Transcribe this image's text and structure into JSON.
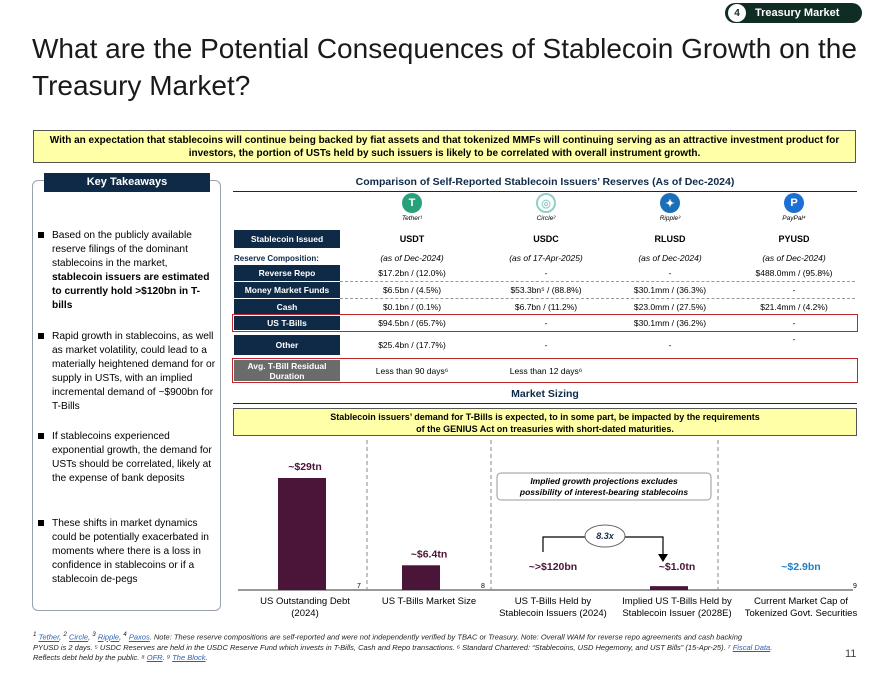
{
  "badge": {
    "number": "4",
    "label": "Treasury Market"
  },
  "title": "What are the Potential Consequences of Stablecoin Growth on the Treasury Market?",
  "banner": {
    "line1": "With an expectation that stablecoins will continue being backed by fiat assets and that tokenized MMFs will continuing serving as an attractive investment product for",
    "line2": "investors, the portion of USTs held by such issuers is likely to be correlated with overall instrument growth."
  },
  "takeaways": {
    "header": "Key Takeaways",
    "items": [
      {
        "pre": "Based on the publicly available reserve filings of the dominant stablecoins in the market, ",
        "bold": "stablecoin issuers are estimated to currently hold >$120bn in T-bills",
        "post": ""
      },
      {
        "pre": "Rapid growth in stablecoins, as well as market volatility, could lead to a materially heightened demand for or supply in USTs, with an implied incremental demand of ~$900bn for T-Bills",
        "bold": "",
        "post": ""
      },
      {
        "pre": "If stablecoins experienced exponential growth, the demand for USTs should be correlated, likely at the expense of bank deposits",
        "bold": "",
        "post": ""
      },
      {
        "pre": "These shifts in market dynamics could be potentially exacerbated in moments where there is a loss in confidence in stablecoins or if a stablecoin de-pegs",
        "bold": "",
        "post": ""
      }
    ]
  },
  "comparison": {
    "title": "Comparison of Self-Reported Stablecoin Issuers’ Reserves (As of Dec-2024)",
    "issuers": [
      {
        "caption": "Tether¹",
        "icon": "tether-icon",
        "color": "#26a17b",
        "glyph": "T",
        "ticker": "USDT",
        "asof": "(as of Dec-2024)"
      },
      {
        "caption": "Circle²",
        "icon": "circle-icon",
        "color": "#8fd0c8",
        "glyph": "◎",
        "ticker": "USDC",
        "asof": "(as of 17-Apr-2025)"
      },
      {
        "caption": "Ripple³",
        "icon": "ripple-icon",
        "color": "#1b6fb8",
        "glyph": "✦",
        "ticker": "RLUSD",
        "asof": "(as of Dec-2024)"
      },
      {
        "caption": "PayPal⁴",
        "icon": "paypal-icon",
        "color": "#1d6fd6",
        "glyph": "P",
        "ticker": "PYUSD",
        "asof": "(as of Dec-2024)"
      }
    ],
    "header_label": "Stablecoin Issued",
    "reserve_label": "Reserve Composition:",
    "rows": [
      {
        "label": "Reverse Repo",
        "values": [
          "$17.2bn / (12.0%)",
          "-",
          "-",
          "$488.0mm / (95.8%)"
        ]
      },
      {
        "label": "Money Market Funds",
        "values": [
          "$6.5bn / (4.5%)",
          "$53.3bn⁵ / (88.8%)",
          "$30.1mm / (36.3%)",
          "-"
        ]
      },
      {
        "label": "Cash",
        "values": [
          "$0.1bn / (0.1%)",
          "$6.7bn / (11.2%)",
          "$23.0mm / (27.5%)",
          "$21.4mm / (4.2%)"
        ]
      },
      {
        "label": "US T-Bills",
        "values": [
          "$94.5bn / (65.7%)",
          "-",
          "$30.1mm / (36.2%)",
          "-"
        ]
      },
      {
        "label": "Other",
        "values": [
          "$25.4bn / (17.7%)",
          "-",
          "-",
          "-"
        ]
      },
      {
        "label": "Avg. T-Bill Residual Duration",
        "values": [
          "Less than 90 days⁶",
          "Less than 12 days⁶",
          "",
          ""
        ]
      }
    ]
  },
  "market_sizing": {
    "title": "Market Sizing",
    "note_line1": "Stablecoin issuers’ demand for T-Bills is expected, to in some part, be impacted by the requirements",
    "note_line2": "of the GENIUS Act on treasuries with short-dated maturities.",
    "callout_line1": "Implied growth projections excludes",
    "callout_line2": "possibility of interest-bearing stablecoins",
    "multiplier": "8.3x",
    "bar_color": "#4a1538",
    "highlight_color": "#1f7fc4",
    "ylim": [
      0,
      29
    ],
    "chart_data": {
      "type": "bar",
      "categories": [
        "US Outstanding Debt (2024)",
        "US T-Bills Market Size",
        "US T-Bills Held by Stablecoin Issuers (2024)",
        "Implied US T-Bills Held by Stablecoin Issuer (2028E)",
        "Current Market Cap of Tokenized Govt. Securities"
      ],
      "values": [
        29,
        6.4,
        0.12,
        1.0,
        0.0029
      ],
      "data_labels": [
        "~$29tn",
        "~$6.4tn",
        "~>$120bn",
        "~$1.0tn",
        "~$2.9bn"
      ],
      "superscripts": [
        "7",
        "8",
        "",
        "",
        "9"
      ],
      "unit": "tn"
    }
  },
  "footnote": {
    "l1_links": [
      "Tether",
      "Circle",
      "Ripple",
      "Paxos"
    ],
    "l1_sup": [
      "1",
      "2",
      "3",
      "4"
    ],
    "l1_text": "Note: These reserve compositions are self-reported and were not independently verified by TBAC or Treasury. Note: Overall WAM for reverse repo agreements and cash backing",
    "l2_text": "PYUSD is 2 days. ⁵ USDC Reserves are held in the USDC Reserve Fund which invests in T-Bills, Cash and Repo transactions. ⁶ Standard Chartered: “Stablecoins, USD Hegemony, and UST Bills” (15-Apr-25). ⁷",
    "l2_link": "Fiscal Data",
    "l3_text": "Reflects debt held by the public. ⁸",
    "l3_link1": "OFR",
    "l3_mid": ". ⁹",
    "l3_link2": "The Block"
  },
  "page_number": "11"
}
